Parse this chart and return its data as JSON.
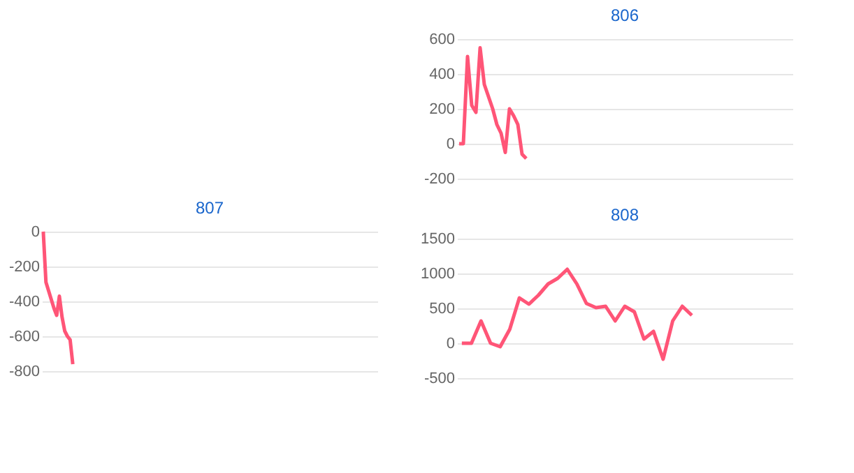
{
  "chart_data": [
    {
      "type": "line",
      "title": "806",
      "categories": [
        null,
        null,
        null,
        null,
        null,
        null,
        null,
        null,
        null,
        null,
        null,
        null,
        null,
        null,
        null,
        null,
        null,
        null,
        null,
        null,
        null,
        null,
        null,
        null,
        null,
        null,
        null,
        null,
        null,
        null,
        null,
        null,
        null,
        null,
        null,
        null,
        null,
        null,
        null,
        null,
        null,
        null,
        null,
        null,
        null,
        null,
        null,
        null,
        null,
        null,
        null,
        null,
        null,
        null,
        null,
        null,
        null,
        null,
        null,
        null,
        null,
        null,
        null,
        null,
        null,
        null,
        null,
        null,
        null,
        null,
        null,
        null,
        null,
        null,
        null,
        null,
        null,
        null,
        null,
        null
      ],
      "series": [
        {
          "color": "#ff5577",
          "values": [
            0,
            0,
            500,
            220,
            180,
            550,
            340,
            270,
            200,
            110,
            60,
            -50,
            200,
            160,
            110,
            -60,
            -85,
            null,
            null,
            null,
            null,
            null,
            null,
            null,
            null,
            null,
            null,
            null,
            null,
            null,
            null,
            null,
            null,
            null,
            null,
            null,
            null,
            null,
            null,
            null,
            null,
            null,
            null,
            null,
            null,
            null,
            null,
            null,
            null,
            null,
            null,
            null,
            null,
            null,
            null,
            null,
            null,
            null,
            null,
            null,
            null,
            null,
            null,
            null,
            null,
            null,
            null,
            null,
            null,
            null,
            null,
            null,
            null,
            null,
            null,
            null,
            null,
            null,
            null,
            null
          ]
        }
      ],
      "ylim": [
        -200,
        600
      ],
      "yticks": [
        -200,
        0,
        200,
        400,
        600
      ],
      "grid": "y",
      "tick_labels": "y"
    },
    {
      "type": "line",
      "title": "807",
      "categories": [
        null,
        null,
        null,
        null,
        null,
        null,
        null,
        null,
        null,
        null,
        null,
        null,
        null,
        null,
        null,
        null,
        null,
        null,
        null,
        null,
        null,
        null,
        null,
        null,
        null,
        null,
        null,
        null,
        null,
        null,
        null,
        null,
        null,
        null,
        null,
        null,
        null,
        null,
        null,
        null,
        null,
        null,
        null,
        null,
        null,
        null,
        null,
        null,
        null,
        null,
        null,
        null,
        null,
        null,
        null,
        null,
        null,
        null,
        null,
        null,
        null,
        null,
        null,
        null,
        null,
        null,
        null,
        null,
        null,
        null,
        null,
        null,
        null,
        null,
        null,
        null,
        null,
        null,
        null,
        null,
        null,
        null,
        null,
        null,
        null,
        null,
        null,
        null,
        null,
        null,
        null,
        null,
        null,
        null,
        null,
        null,
        null,
        null,
        null,
        null,
        null,
        null,
        null,
        null,
        null,
        null,
        null,
        null,
        null,
        null,
        null,
        null,
        null,
        null,
        null,
        null,
        null,
        null,
        null,
        null,
        null,
        null,
        null,
        null,
        null
      ],
      "series": [
        {
          "color": "#ff5577",
          "values": [
            0,
            -290,
            -340,
            -390,
            -440,
            -480,
            -370,
            -490,
            -570,
            -600,
            -620,
            -760,
            null,
            null,
            null,
            null,
            null,
            null,
            null,
            null,
            null,
            null,
            null,
            null,
            null,
            null,
            null,
            null,
            null,
            null,
            null,
            null,
            null,
            null,
            null,
            null,
            null,
            null,
            null,
            null,
            null,
            null,
            null,
            null,
            null,
            null,
            null,
            null,
            null,
            null,
            null,
            null,
            null,
            null,
            null,
            null,
            null,
            null,
            null,
            null,
            null,
            null,
            null,
            null,
            null,
            null,
            null,
            null,
            null,
            null,
            null,
            null,
            null,
            null,
            null,
            null,
            null,
            null,
            null,
            null,
            null,
            null,
            null,
            null,
            null,
            null,
            null,
            null,
            null,
            null,
            null,
            null,
            null,
            null,
            null,
            null,
            null,
            null,
            null,
            null,
            null,
            null,
            null,
            null,
            null,
            null,
            null,
            null,
            null,
            null,
            null,
            null,
            null,
            null,
            null,
            null,
            null,
            null,
            null,
            null,
            null,
            null,
            null,
            null,
            null
          ]
        }
      ],
      "ylim": [
        -800,
        0
      ],
      "yticks": [
        -800,
        -600,
        -400,
        -200,
        0
      ],
      "grid": "y",
      "tick_labels": "y"
    },
    {
      "type": "line",
      "title": "808",
      "categories": [
        null,
        null,
        null,
        null,
        null,
        null,
        null,
        null,
        null,
        null,
        null,
        null,
        null,
        null,
        null,
        null,
        null,
        null,
        null,
        null,
        null,
        null,
        null,
        null,
        null,
        null,
        null,
        null,
        null,
        null,
        null,
        null,
        null,
        null,
        null
      ],
      "series": [
        {
          "color": "#ff5577",
          "values": [
            0,
            0,
            320,
            0,
            -50,
            200,
            650,
            560,
            690,
            850,
            930,
            1060,
            850,
            570,
            510,
            530,
            320,
            530,
            450,
            60,
            170,
            -230,
            320,
            530,
            400,
            null,
            null,
            null,
            null,
            null,
            null,
            null,
            null,
            null,
            null
          ]
        }
      ],
      "ylim": [
        -500,
        1500
      ],
      "yticks": [
        -500,
        0,
        500,
        {
          "value": 1000,
          "label": "1000"
        },
        {
          "value": 1500,
          "label": "1500"
        }
      ],
      "grid": "y",
      "tick_labels": "y"
    }
  ]
}
